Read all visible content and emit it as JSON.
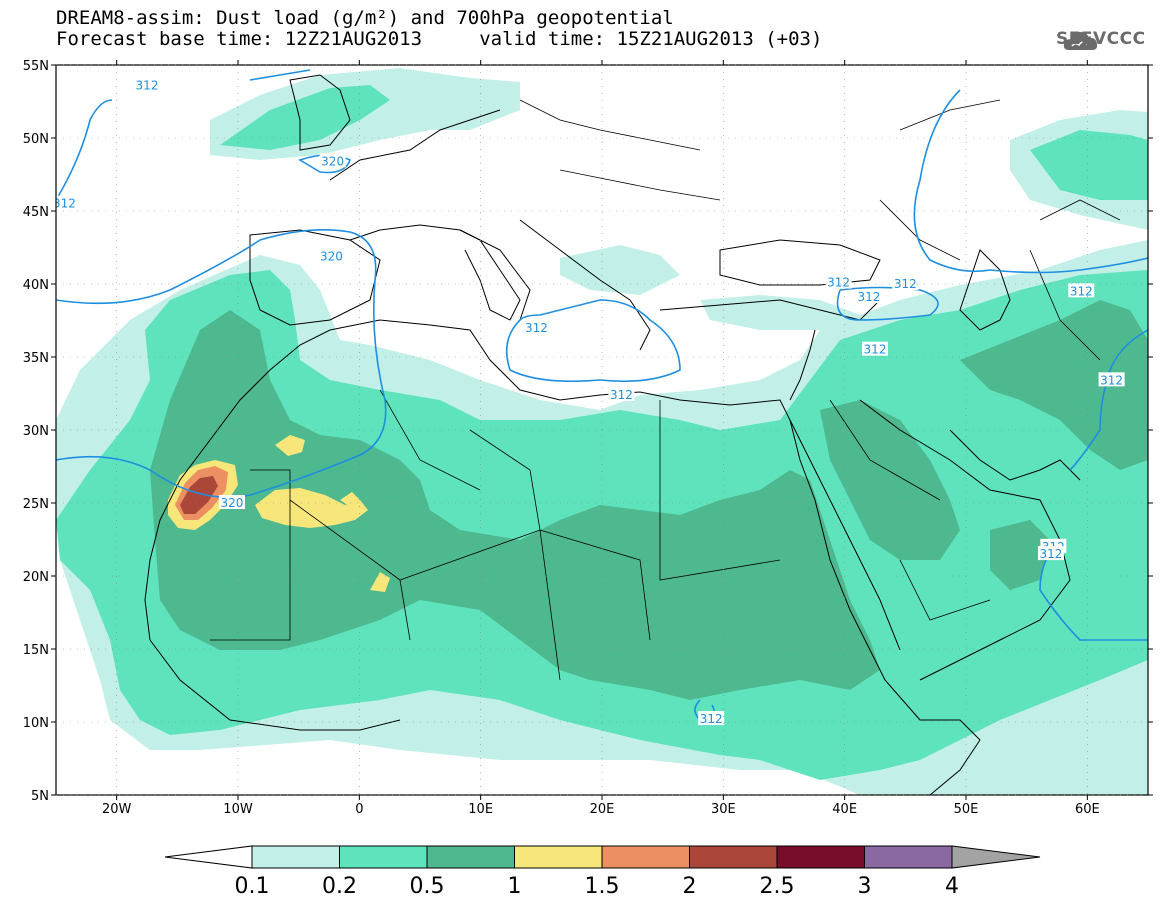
{
  "header": {
    "title_line1": "DREAM8-assim: Dust load (g/m²) and 700hPa geopotential",
    "title_line2": "Forecast base time: 12Z21AUG2013     valid time: 15Z21AUG2013 (+03)",
    "logo_text": "SEEVCCC",
    "logo_icon": "cloud-icon"
  },
  "map": {
    "lat_range": [
      5,
      55
    ],
    "lon_range": [
      -25,
      65
    ],
    "lat_ticks": [
      {
        "value": 55,
        "label": "55N"
      },
      {
        "value": 50,
        "label": "50N"
      },
      {
        "value": 45,
        "label": "45N"
      },
      {
        "value": 40,
        "label": "40N"
      },
      {
        "value": 35,
        "label": "35N"
      },
      {
        "value": 30,
        "label": "30N"
      },
      {
        "value": 25,
        "label": "25N"
      },
      {
        "value": 20,
        "label": "20N"
      },
      {
        "value": 15,
        "label": "15N"
      },
      {
        "value": 10,
        "label": "10N"
      },
      {
        "value": 5,
        "label": "5N"
      }
    ],
    "lon_ticks": [
      {
        "value": -20,
        "label": "20W"
      },
      {
        "value": -10,
        "label": "10W"
      },
      {
        "value": 0,
        "label": "0"
      },
      {
        "value": 10,
        "label": "10E"
      },
      {
        "value": 20,
        "label": "20E"
      },
      {
        "value": 30,
        "label": "30E"
      },
      {
        "value": 40,
        "label": "40E"
      },
      {
        "value": 50,
        "label": "50E"
      },
      {
        "value": 60,
        "label": "60E"
      }
    ],
    "contour_labels": [
      {
        "text": "312",
        "lon": -17.5,
        "lat": 53.6
      },
      {
        "text": "320",
        "lon": -2.2,
        "lat": 48.4
      },
      {
        "text": "312",
        "lon": -24.3,
        "lat": 45.5
      },
      {
        "text": "320",
        "lon": -2.3,
        "lat": 41.9
      },
      {
        "text": "312",
        "lon": 14.6,
        "lat": 37.0
      },
      {
        "text": "312",
        "lon": 21.6,
        "lat": 32.4
      },
      {
        "text": "312",
        "lon": 39.5,
        "lat": 40.1
      },
      {
        "text": "312",
        "lon": 45.0,
        "lat": 40.0
      },
      {
        "text": "312",
        "lon": 42.0,
        "lat": 39.1
      },
      {
        "text": "312",
        "lon": 42.5,
        "lat": 35.5
      },
      {
        "text": "312",
        "lon": 62.0,
        "lat": 33.4
      },
      {
        "text": "312",
        "lon": 59.5,
        "lat": 39.5
      },
      {
        "text": "320",
        "lon": -10.5,
        "lat": 25.0
      },
      {
        "text": "312",
        "lon": 57.2,
        "lat": 22.0
      },
      {
        "text": "312",
        "lon": 57.0,
        "lat": 21.5
      },
      {
        "text": "312",
        "lon": 29.0,
        "lat": 10.2
      }
    ]
  },
  "legend": {
    "levels": [
      "0.1",
      "0.2",
      "0.5",
      "1",
      "1.5",
      "2",
      "2.5",
      "3",
      "4"
    ],
    "colors": [
      "#ffffff",
      "#c2f0e8",
      "#5ee3bd",
      "#4eb88f",
      "#f7e77a",
      "#ec9063",
      "#aa4738",
      "#770d2b",
      "#8a68a2",
      "#a3a3a3"
    ]
  },
  "colors": {
    "contour": "#1e8fe0",
    "dust_01": "#c2f0e8",
    "dust_02": "#5ee3bd",
    "dust_05": "#4eb88f",
    "dust_1": "#f7e77a",
    "dust_15": "#ec9063",
    "dust_2": "#aa4738"
  }
}
